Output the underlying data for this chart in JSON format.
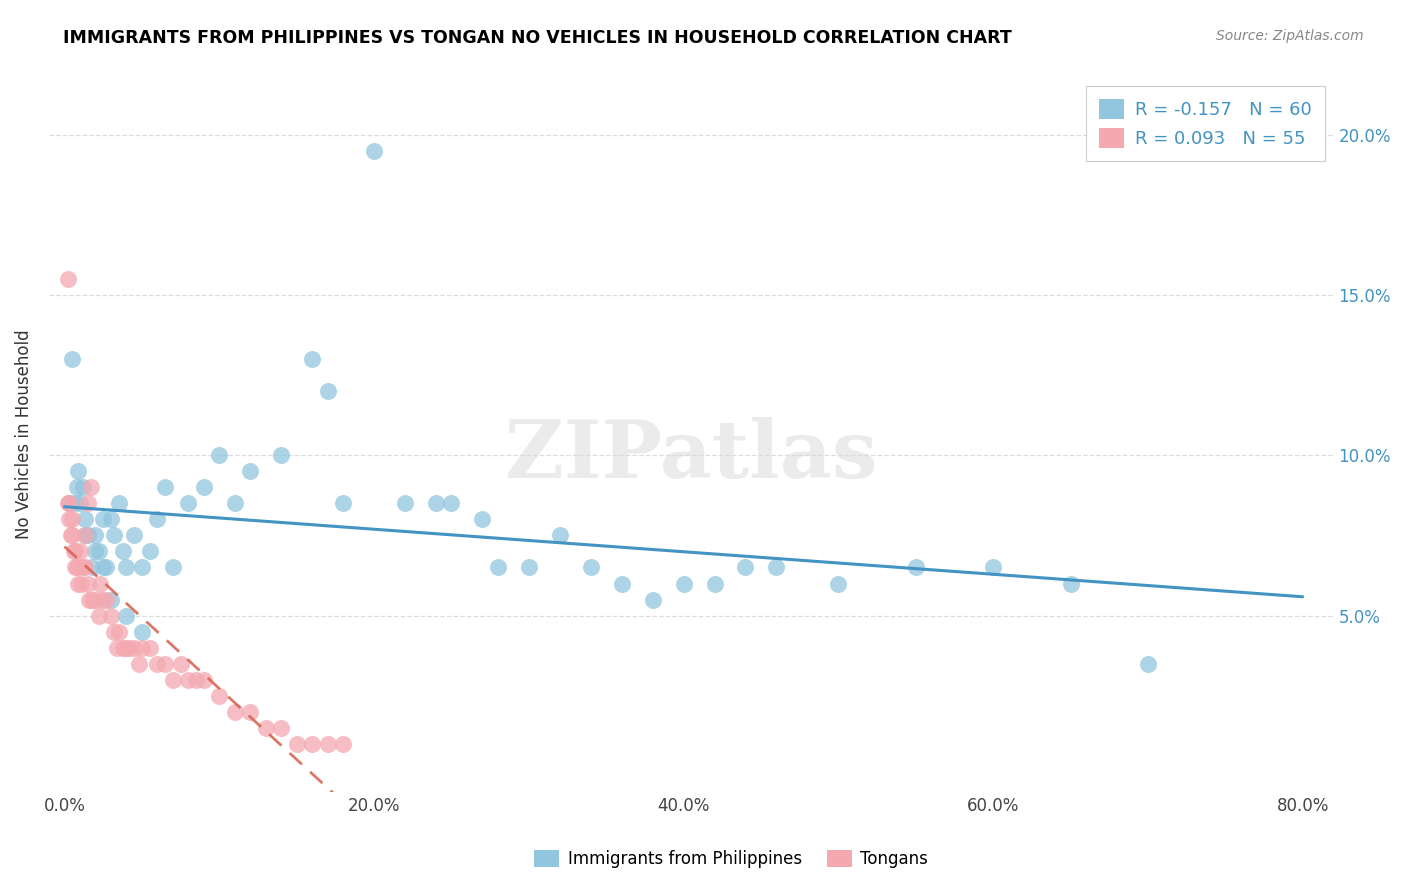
{
  "title": "IMMIGRANTS FROM PHILIPPINES VS TONGAN NO VEHICLES IN HOUSEHOLD CORRELATION CHART",
  "source": "Source: ZipAtlas.com",
  "xlabel_ticks": [
    "0.0%",
    "20.0%",
    "40.0%",
    "60.0%",
    "80.0%"
  ],
  "xlabel_tick_vals": [
    0.0,
    0.2,
    0.4,
    0.6,
    0.8
  ],
  "ylabel_ticks": [
    "5.0%",
    "10.0%",
    "15.0%",
    "20.0%"
  ],
  "ylabel_tick_vals": [
    0.05,
    0.1,
    0.15,
    0.2
  ],
  "ylabel": "No Vehicles in Household",
  "legend_label1": "Immigrants from Philippines",
  "legend_label2": "Tongans",
  "r1": "-0.157",
  "n1": "60",
  "r2": "0.093",
  "n2": "55",
  "blue_color": "#92c5de",
  "pink_color": "#f4a9b0",
  "blue_line_color": "#4393c3",
  "pink_line_color": "#d6604d",
  "watermark": "ZIPatlas",
  "blue_scatter_x": [
    0.003,
    0.005,
    0.007,
    0.008,
    0.009,
    0.01,
    0.012,
    0.013,
    0.015,
    0.018,
    0.02,
    0.022,
    0.025,
    0.027,
    0.03,
    0.032,
    0.035,
    0.038,
    0.04,
    0.045,
    0.05,
    0.055,
    0.06,
    0.065,
    0.07,
    0.08,
    0.09,
    0.1,
    0.11,
    0.12,
    0.14,
    0.16,
    0.17,
    0.18,
    0.2,
    0.22,
    0.24,
    0.25,
    0.27,
    0.28,
    0.3,
    0.32,
    0.34,
    0.36,
    0.38,
    0.4,
    0.42,
    0.44,
    0.46,
    0.5,
    0.55,
    0.6,
    0.65,
    0.7,
    0.013,
    0.02,
    0.025,
    0.03,
    0.04,
    0.05
  ],
  "blue_scatter_y": [
    0.085,
    0.13,
    0.085,
    0.09,
    0.095,
    0.085,
    0.09,
    0.08,
    0.075,
    0.065,
    0.075,
    0.07,
    0.08,
    0.065,
    0.08,
    0.075,
    0.085,
    0.07,
    0.065,
    0.075,
    0.065,
    0.07,
    0.08,
    0.09,
    0.065,
    0.085,
    0.09,
    0.1,
    0.085,
    0.095,
    0.1,
    0.13,
    0.12,
    0.085,
    0.195,
    0.085,
    0.085,
    0.085,
    0.08,
    0.065,
    0.065,
    0.075,
    0.065,
    0.06,
    0.055,
    0.06,
    0.06,
    0.065,
    0.065,
    0.06,
    0.065,
    0.065,
    0.06,
    0.035,
    0.075,
    0.07,
    0.065,
    0.055,
    0.05,
    0.045
  ],
  "pink_scatter_x": [
    0.002,
    0.003,
    0.004,
    0.005,
    0.006,
    0.007,
    0.008,
    0.009,
    0.01,
    0.012,
    0.013,
    0.015,
    0.016,
    0.018,
    0.02,
    0.022,
    0.023,
    0.025,
    0.027,
    0.03,
    0.032,
    0.034,
    0.035,
    0.038,
    0.04,
    0.042,
    0.045,
    0.048,
    0.05,
    0.055,
    0.06,
    0.065,
    0.07,
    0.075,
    0.08,
    0.085,
    0.09,
    0.1,
    0.11,
    0.12,
    0.13,
    0.14,
    0.15,
    0.16,
    0.17,
    0.18,
    0.002,
    0.003,
    0.005,
    0.007,
    0.009,
    0.011,
    0.013,
    0.015,
    0.017
  ],
  "pink_scatter_y": [
    0.085,
    0.08,
    0.075,
    0.08,
    0.07,
    0.065,
    0.065,
    0.06,
    0.07,
    0.065,
    0.065,
    0.06,
    0.055,
    0.055,
    0.055,
    0.05,
    0.06,
    0.055,
    0.055,
    0.05,
    0.045,
    0.04,
    0.045,
    0.04,
    0.04,
    0.04,
    0.04,
    0.035,
    0.04,
    0.04,
    0.035,
    0.035,
    0.03,
    0.035,
    0.03,
    0.03,
    0.03,
    0.025,
    0.02,
    0.02,
    0.015,
    0.015,
    0.01,
    0.01,
    0.01,
    0.01,
    0.155,
    0.085,
    0.075,
    0.07,
    0.065,
    0.06,
    0.075,
    0.085,
    0.09
  ],
  "xlim": [
    -0.01,
    0.82
  ],
  "ylim": [
    -0.005,
    0.218
  ]
}
